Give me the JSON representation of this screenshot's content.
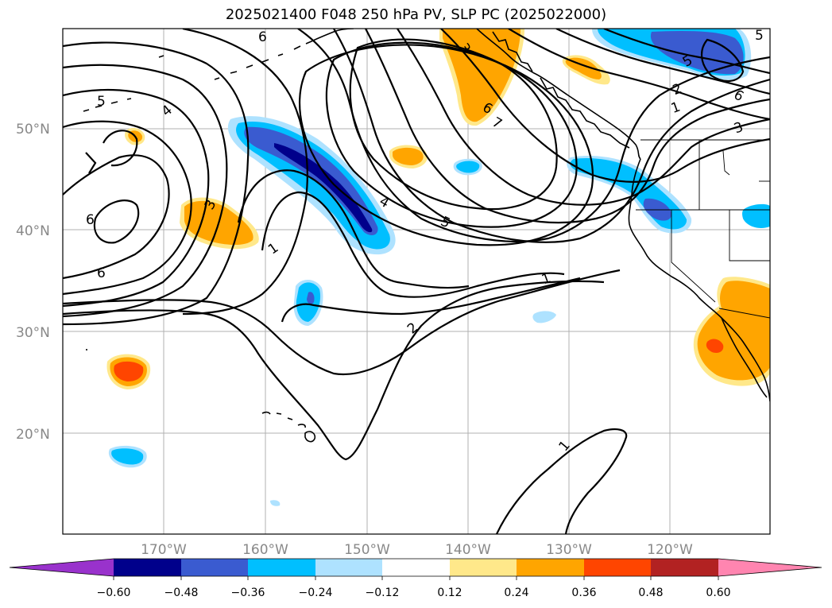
{
  "title": "2025021400 F048 250 hPa PV, SLP PC (2025022000)",
  "map": {
    "lat_labels": [
      "50°N",
      "40°N",
      "30°N",
      "20°N"
    ],
    "lon_labels": [
      "170°W",
      "160°W",
      "150°W",
      "140°W",
      "130°W",
      "120°W"
    ],
    "contour_labels": [
      "6",
      "5",
      "4",
      "6",
      "6",
      "3",
      "1",
      "4",
      "5",
      "3",
      "6",
      "7",
      "1",
      "2",
      "1",
      "5",
      "2",
      "1",
      "6",
      "3",
      "5"
    ],
    "colors": {
      "neg_060": "#9932cc",
      "neg_048": "#00008b",
      "neg_036": "#3a5bd0",
      "neg_024": "#00bfff",
      "neg_012": "#aee2ff",
      "pos_012": "#ffe88a",
      "pos_024": "#ffa500",
      "pos_036": "#ff4500",
      "pos_048": "#b22222",
      "pos_060": "#ff85b0"
    }
  },
  "colorbar": {
    "ticks": [
      "−0.60",
      "−0.48",
      "−0.36",
      "−0.24",
      "−0.12",
      "0.12",
      "0.24",
      "0.36",
      "0.48",
      "0.60"
    ]
  }
}
